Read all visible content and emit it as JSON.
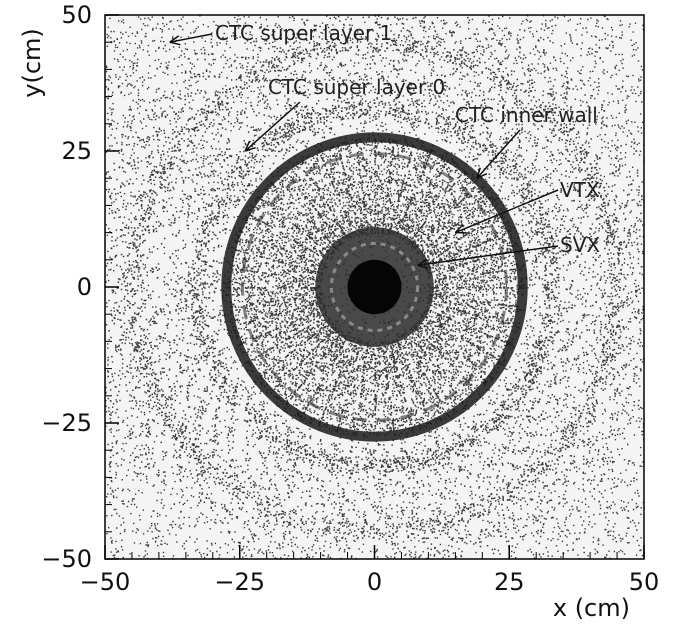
{
  "chart_data": {
    "type": "scatter",
    "title": "",
    "xlabel": "x (cm)",
    "ylabel": "y(cm)",
    "xlim": [
      -50,
      50
    ],
    "ylim": [
      -50,
      50
    ],
    "x_ticks": [
      -50,
      -25,
      0,
      25,
      50
    ],
    "y_ticks": [
      50,
      25,
      0,
      -25,
      -50
    ],
    "x_tick_labels": [
      "−50",
      "−25",
      "0",
      "25",
      "50"
    ],
    "y_tick_labels": [
      "50",
      "25",
      "0",
      "−25",
      "−50"
    ],
    "grid": false,
    "legend": "none",
    "point_color": "#3a3a3a",
    "structures": [
      {
        "name": "SVX",
        "radius_cm": 10
      },
      {
        "name": "VTX",
        "radius_cm": 18
      },
      {
        "name": "CTC inner wall",
        "radius_cm": 27.5
      },
      {
        "name": "CTC super layer 0",
        "radius_cm": 33
      },
      {
        "name": "CTC super layer 1",
        "radius_cm": 45
      }
    ],
    "annotations": [
      {
        "text": "CTC super layer 1",
        "target": [
          -38,
          45
        ]
      },
      {
        "text": "CTC super layer 0",
        "target": [
          -24,
          25
        ]
      },
      {
        "text": "CTC inner wall",
        "target": [
          19,
          20
        ]
      },
      {
        "text": "VTX",
        "target": [
          15,
          10
        ]
      },
      {
        "text": "SVX",
        "target": [
          8,
          4
        ]
      }
    ]
  }
}
